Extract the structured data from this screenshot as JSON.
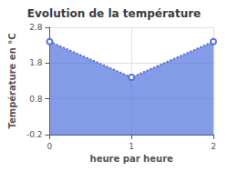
{
  "chart_data": {
    "type": "line",
    "title": "Evolution de la température",
    "xlabel": "heure par heure",
    "ylabel": "Température en °C",
    "x": [
      0,
      1,
      2
    ],
    "values": [
      2.4,
      1.4,
      2.4
    ],
    "xlim": [
      0,
      2
    ],
    "xticks": [
      0,
      1,
      2
    ],
    "ylim": [
      -0.2,
      2.8
    ],
    "yticks": [
      -0.2,
      0.8,
      1.8,
      2.8
    ],
    "line_style": "dotted",
    "grid": true
  }
}
